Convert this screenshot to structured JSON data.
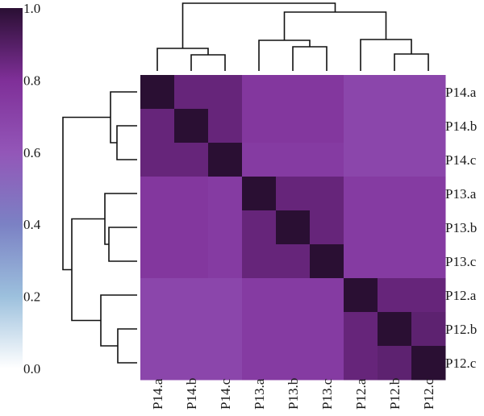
{
  "chart_data": {
    "type": "heatmap",
    "labels": [
      "P14.a",
      "P14.b",
      "P14.c",
      "P13.a",
      "P13.b",
      "P13.c",
      "P12.a",
      "P12.b",
      "P12.c"
    ],
    "matrix": [
      [
        1.0,
        0.86,
        0.86,
        0.76,
        0.76,
        0.76,
        0.68,
        0.68,
        0.68
      ],
      [
        0.86,
        1.0,
        0.86,
        0.76,
        0.76,
        0.76,
        0.68,
        0.68,
        0.68
      ],
      [
        0.86,
        0.86,
        1.0,
        0.74,
        0.74,
        0.74,
        0.68,
        0.68,
        0.68
      ],
      [
        0.76,
        0.76,
        0.74,
        1.0,
        0.86,
        0.86,
        0.74,
        0.74,
        0.74
      ],
      [
        0.76,
        0.76,
        0.74,
        0.86,
        1.0,
        0.86,
        0.74,
        0.74,
        0.74
      ],
      [
        0.76,
        0.76,
        0.74,
        0.86,
        0.86,
        1.0,
        0.74,
        0.74,
        0.74
      ],
      [
        0.68,
        0.68,
        0.68,
        0.74,
        0.74,
        0.74,
        1.0,
        0.86,
        0.86
      ],
      [
        0.68,
        0.68,
        0.68,
        0.74,
        0.74,
        0.74,
        0.86,
        1.0,
        0.88
      ],
      [
        0.68,
        0.68,
        0.68,
        0.74,
        0.74,
        0.74,
        0.86,
        0.88,
        1.0
      ]
    ],
    "colorbar": {
      "range": [
        0.0,
        1.0
      ],
      "ticks": [
        "0.0",
        "0.2",
        "0.4",
        "0.6",
        "0.8",
        "1.0"
      ],
      "stops": [
        "#ffffff",
        "#9cc0dd",
        "#7b81c4",
        "#9356b8",
        "#7f2f98",
        "#2a0f33"
      ]
    },
    "dendrogram": {
      "top": true,
      "left": true,
      "clusters": [
        [
          "P14.a",
          "P14.b",
          "P14.c"
        ],
        [
          "P13.a",
          "P13.b",
          "P13.c"
        ],
        [
          "P12.a",
          "P12.b",
          "P12.c"
        ]
      ]
    },
    "grid": false
  }
}
